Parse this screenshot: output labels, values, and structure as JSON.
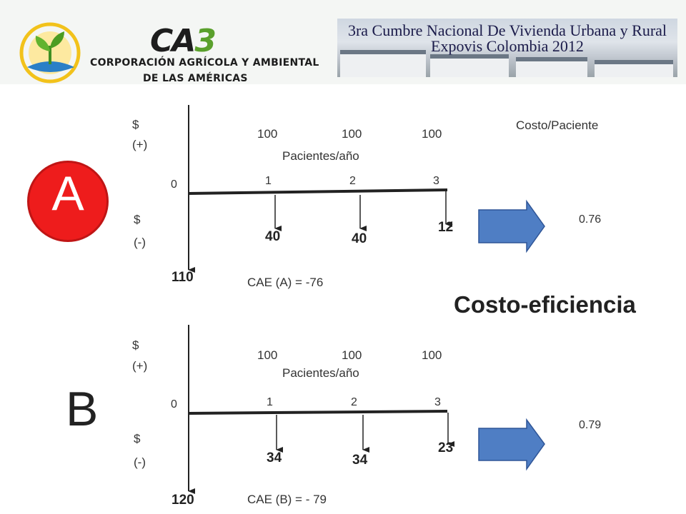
{
  "header": {
    "logo": {
      "mark": "CA",
      "mark_number": "3",
      "line1": "CORPORACIÓN AGRÍCOLA Y AMBIENTAL",
      "line2": "DE LAS AMÉRICAS"
    },
    "banner": {
      "line1": "3ra Cumbre Nacional De Vivienda Urbana y Rural",
      "line2": "Expovis Colombia 2012"
    }
  },
  "costo_paciente_label": "Costo/Paciente",
  "main_title": "Costo-eficiencia",
  "diagram_a": {
    "label": "A",
    "positive_symbol": "$",
    "positive_sign": "(+)",
    "negative_symbol": "$",
    "negative_sign": "(-)",
    "origin": "0",
    "initial_cost": "110",
    "period_labels": [
      "1",
      "2",
      "3"
    ],
    "patients_per_year": [
      "100",
      "100",
      "100"
    ],
    "patients_label": "Pacientes/año",
    "period_costs": [
      "40",
      "40",
      "12"
    ],
    "cae": "CAE (A) =  -76",
    "cost_per_patient": "0.76"
  },
  "diagram_b": {
    "label": "B",
    "positive_symbol": "$",
    "positive_sign": "(+)",
    "negative_symbol": "$",
    "negative_sign": "(-)",
    "origin": "0",
    "initial_cost": "120",
    "period_labels": [
      "1",
      "2",
      "3"
    ],
    "patients_per_year": [
      "100",
      "100",
      "100"
    ],
    "patients_label": "Pacientes/año",
    "period_costs": [
      "34",
      "34",
      "23"
    ],
    "cae": "CAE (B) = - 79",
    "cost_per_patient": "0.79"
  },
  "colors": {
    "circle_a": "#ee1c1c",
    "arrow_fill": "#4f7ec4",
    "arrow_stroke": "#2f5597"
  }
}
